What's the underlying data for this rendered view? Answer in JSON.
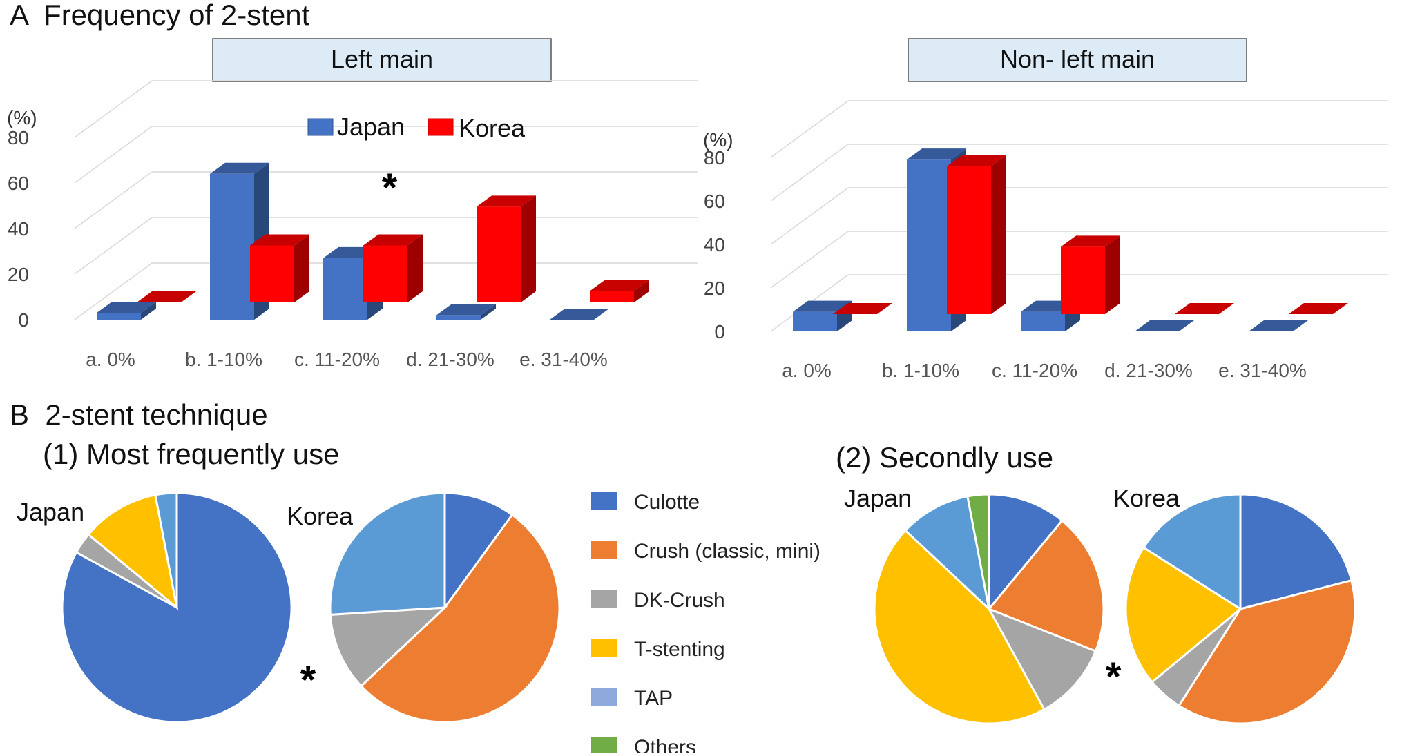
{
  "panel_a_title": "A  Frequency of 2-stent",
  "panel_b_title": "B  2-stent technique",
  "panel_b1_title": "(1) Most frequently use",
  "panel_b2_title": "(2) Secondly use",
  "colors": {
    "japan": "#4472C4",
    "korea": "#FF0000",
    "culotte": "#4472C4",
    "crush": "#ED7D31",
    "dk_crush": "#A5A5A5",
    "t_stenting": "#FFC000",
    "tap": "#5B9BD5",
    "others": "#70AD47"
  },
  "pie_legend": [
    {
      "label": "Culotte",
      "color": "#4472C4"
    },
    {
      "label": "Crush (classic, mini)",
      "color": "#ED7D31"
    },
    {
      "label": "DK-Crush",
      "color": "#A5A5A5"
    },
    {
      "label": "T-stenting",
      "color": "#FFC000"
    },
    {
      "label": "TAP",
      "color": "#8EA9DB"
    },
    {
      "label": "Others",
      "color": "#70AD47"
    }
  ],
  "chart_data": [
    {
      "type": "bar",
      "title": "Left main",
      "ylabel": "(%)",
      "ylim": [
        0,
        80
      ],
      "yticks": [
        "0",
        "20",
        "40",
        "60",
        "80"
      ],
      "categories": [
        "a. 0%",
        "b. 1-10%",
        "c. 11-20%",
        "d. 21-30%",
        "e. 31-40%"
      ],
      "series": [
        {
          "name": "Japan",
          "values": [
            3,
            64,
            27,
            2,
            0
          ]
        },
        {
          "name": "Korea",
          "values": [
            0,
            25,
            25,
            42,
            5
          ]
        }
      ],
      "annotations": [
        "*"
      ],
      "legend": "top-center",
      "grid": true
    },
    {
      "type": "bar",
      "title": "Non- left main",
      "ylabel": "(%)",
      "ylim": [
        0,
        80
      ],
      "yticks": [
        "0",
        "20",
        "40",
        "60",
        "80"
      ],
      "categories": [
        "a. 0%",
        "b. 1-10%",
        "c. 11-20%",
        "d. 21-30%",
        "e. 31-40%"
      ],
      "series": [
        {
          "name": "Japan",
          "values": [
            9,
            79,
            9,
            0,
            0
          ]
        },
        {
          "name": "Korea",
          "values": [
            0,
            68,
            31,
            0,
            0
          ]
        }
      ],
      "grid": true
    },
    {
      "type": "pie",
      "group": "(1) Most frequently use",
      "title": "Japan",
      "labels": [
        "Culotte",
        "Crush (classic, mini)",
        "DK-Crush",
        "T-stenting",
        "TAP",
        "Others"
      ],
      "values": [
        83,
        0,
        3,
        11,
        3,
        0
      ]
    },
    {
      "type": "pie",
      "group": "(1) Most frequently use",
      "title": "Korea",
      "labels": [
        "Culotte",
        "Crush (classic, mini)",
        "DK-Crush",
        "T-stenting",
        "TAP",
        "Others"
      ],
      "values": [
        10,
        53,
        11,
        0,
        26,
        0
      ],
      "annotations": [
        "*"
      ]
    },
    {
      "type": "pie",
      "group": "(2) Secondly use",
      "title": "Japan",
      "labels": [
        "Culotte",
        "Crush (classic, mini)",
        "DK-Crush",
        "T-stenting",
        "TAP",
        "Others"
      ],
      "values": [
        11,
        20,
        11,
        45,
        10,
        3
      ]
    },
    {
      "type": "pie",
      "group": "(2) Secondly use",
      "title": "Korea",
      "labels": [
        "Culotte",
        "Crush (classic, mini)",
        "DK-Crush",
        "T-stenting",
        "TAP",
        "Others"
      ],
      "values": [
        21,
        38,
        5,
        20,
        16,
        0
      ],
      "annotations": [
        "*"
      ]
    }
  ]
}
